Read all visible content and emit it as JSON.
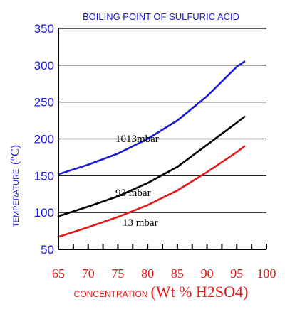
{
  "chart_data": {
    "type": "line",
    "title": "BOILING POINT OF SULFURIC ACID",
    "xlabel": {
      "prefix": "CONCENTRATION",
      "main": "(Wt % H2SO4)"
    },
    "ylabel": {
      "prefix": "TEMPERATURE",
      "main": "(°C)"
    },
    "xlim": [
      65,
      100
    ],
    "ylim": [
      50,
      350
    ],
    "xticks": [
      65,
      70,
      75,
      80,
      85,
      90,
      95,
      100
    ],
    "yticks": [
      50,
      100,
      150,
      200,
      250,
      300,
      350
    ],
    "grid": {
      "horizontal": true,
      "vertical": false
    },
    "series": [
      {
        "name": "1013mbar",
        "color": "#1a1ad6",
        "points": [
          [
            65,
            152
          ],
          [
            70,
            165
          ],
          [
            75,
            180
          ],
          [
            80,
            200
          ],
          [
            85,
            225
          ],
          [
            90,
            258
          ],
          [
            95,
            298
          ],
          [
            96.3,
            305
          ]
        ]
      },
      {
        "name": "93 mbar",
        "color": "#000000",
        "points": [
          [
            65,
            95
          ],
          [
            70,
            108
          ],
          [
            75,
            122
          ],
          [
            80,
            140
          ],
          [
            85,
            162
          ],
          [
            90,
            192
          ],
          [
            95,
            222
          ],
          [
            96.3,
            230
          ]
        ]
      },
      {
        "name": "13 mbar",
        "color": "#e31a1a",
        "points": [
          [
            65,
            67
          ],
          [
            70,
            80
          ],
          [
            75,
            94
          ],
          [
            80,
            110
          ],
          [
            85,
            130
          ],
          [
            90,
            155
          ],
          [
            95,
            182
          ],
          [
            96.3,
            190
          ]
        ]
      }
    ]
  }
}
